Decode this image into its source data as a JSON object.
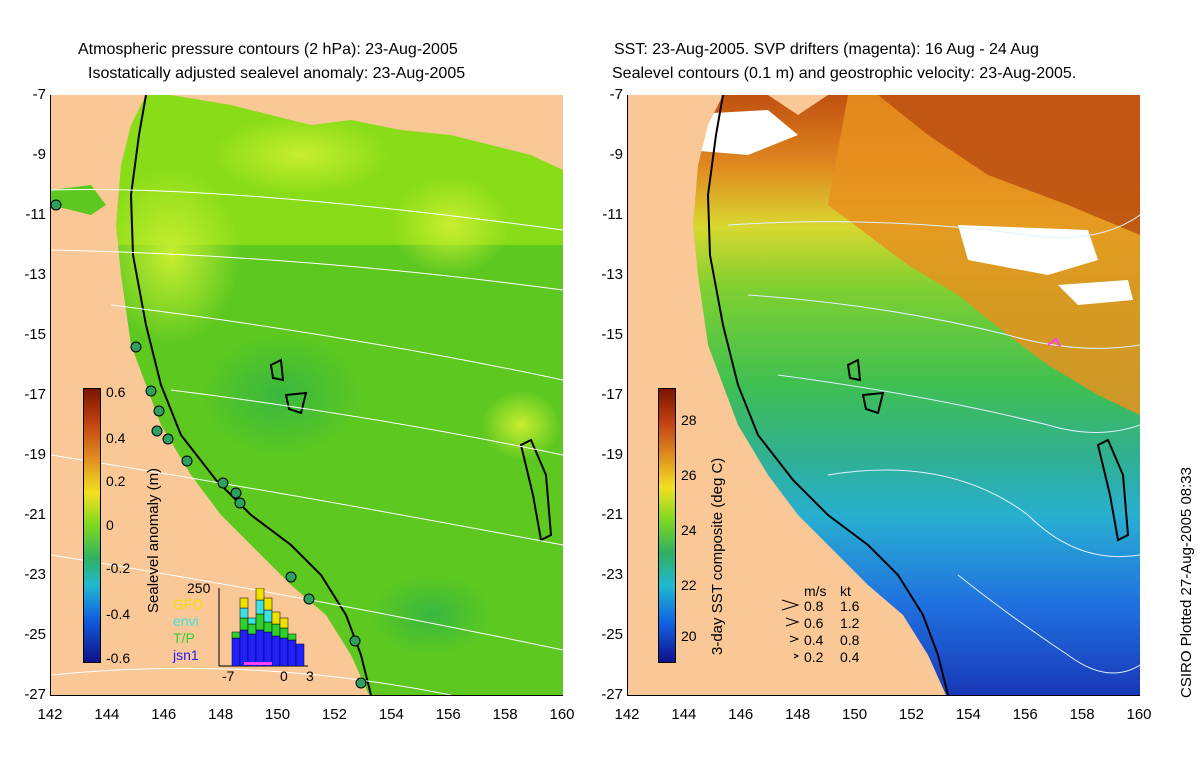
{
  "left_panel": {
    "title_line1": "Atmospheric pressure contours (2 hPa): 23-Aug-2005",
    "title_line2": "Isostatically adjusted sealevel anomaly: 23-Aug-2005",
    "colorbar": {
      "label": "Sealevel anomaly (m)",
      "ticks": [
        "0.6",
        "0.4",
        "0.2",
        "0",
        "-0.2",
        "-0.4",
        "-0.6"
      ]
    },
    "inset": {
      "max_label": "250",
      "legend": [
        "GFO",
        "envi",
        "T/P",
        "jsn1"
      ],
      "legend_colors": [
        "#f0e000",
        "#40e0e0",
        "#30d030",
        "#2020ff"
      ],
      "x_ticks": [
        "-7",
        "0",
        "3"
      ]
    }
  },
  "right_panel": {
    "title_line1": "SST: 23-Aug-2005. SVP drifters (magenta): 16 Aug - 24 Aug",
    "title_line2": "Sealevel contours (0.1 m) and geostrophic velocity: 23-Aug-2005.",
    "colorbar": {
      "label": "3-day SST composite (deg C)",
      "ticks": [
        "28",
        "26",
        "24",
        "22",
        "20"
      ]
    },
    "speed_legend": {
      "header_ms": "m/s",
      "header_kt": "kt",
      "rows": [
        {
          "ms": "0.8",
          "kt": "1.6"
        },
        {
          "ms": "0.6",
          "kt": "1.2"
        },
        {
          "ms": "0.4",
          "kt": "0.8"
        },
        {
          "ms": "0.2",
          "kt": "0.4"
        }
      ]
    }
  },
  "axes": {
    "y_ticks": [
      "-7",
      "-9",
      "-11",
      "-13",
      "-15",
      "-17",
      "-19",
      "-21",
      "-23",
      "-25",
      "-27"
    ],
    "x_ticks": [
      "142",
      "144",
      "146",
      "148",
      "150",
      "152",
      "154",
      "156",
      "158",
      "160"
    ]
  },
  "credit": "CSIRO Plotted 27-Aug-2005 08:33",
  "colors": {
    "land": "#f9c896",
    "sla_green": "#66d40a",
    "sla_yellow_green": "#a8e61e",
    "sst_orange": "#f0a020",
    "sst_green": "#40c050",
    "sst_blue": "#1a50d8"
  }
}
